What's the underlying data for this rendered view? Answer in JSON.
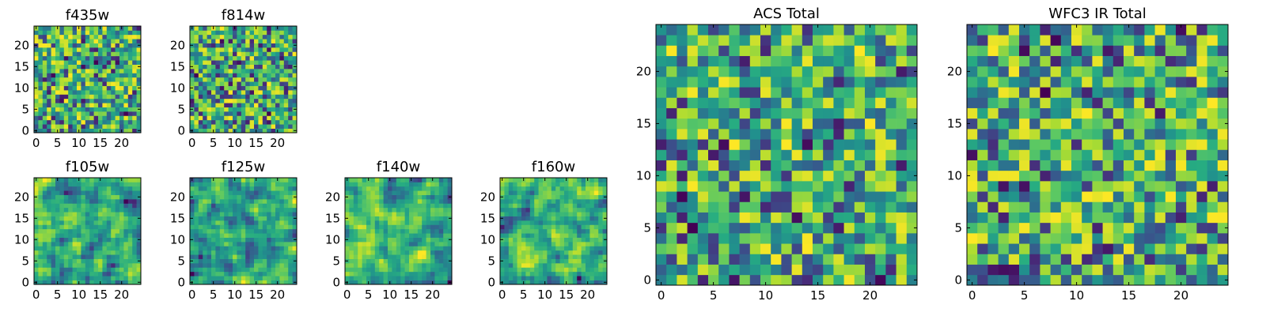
{
  "figure": {
    "colormap": "viridis"
  },
  "chart_data": [
    {
      "type": "heatmap",
      "title": "f435w",
      "xlim": [
        -0.5,
        24.5
      ],
      "ylim": [
        -0.5,
        24.5
      ],
      "xticks": [
        0,
        5,
        10,
        15,
        20
      ],
      "yticks": [
        0,
        5,
        10,
        15,
        20
      ],
      "value_range": [
        0,
        1
      ],
      "seed": 11,
      "smooth": 0,
      "grid": false
    },
    {
      "type": "heatmap",
      "title": "f814w",
      "xlim": [
        -0.5,
        24.5
      ],
      "ylim": [
        -0.5,
        24.5
      ],
      "xticks": [
        0,
        5,
        10,
        15,
        20
      ],
      "yticks": [
        0,
        5,
        10,
        15,
        20
      ],
      "value_range": [
        0,
        1
      ],
      "seed": 23,
      "smooth": 0,
      "grid": false
    },
    {
      "type": "heatmap",
      "title": "f105w",
      "xlim": [
        -0.5,
        24.5
      ],
      "ylim": [
        -0.5,
        24.5
      ],
      "xticks": [
        0,
        5,
        10,
        15,
        20
      ],
      "yticks": [
        0,
        5,
        10,
        15,
        20
      ],
      "value_range": [
        0,
        1
      ],
      "seed": 37,
      "smooth": 1,
      "grid": false
    },
    {
      "type": "heatmap",
      "title": "f125w",
      "xlim": [
        -0.5,
        24.5
      ],
      "ylim": [
        -0.5,
        24.5
      ],
      "xticks": [
        0,
        5,
        10,
        15,
        20
      ],
      "yticks": [
        0,
        5,
        10,
        15,
        20
      ],
      "value_range": [
        0,
        1
      ],
      "seed": 41,
      "smooth": 1,
      "grid": false
    },
    {
      "type": "heatmap",
      "title": "f140w",
      "xlim": [
        -0.5,
        24.5
      ],
      "ylim": [
        -0.5,
        24.5
      ],
      "xticks": [
        0,
        5,
        10,
        15,
        20
      ],
      "yticks": [
        0,
        5,
        10,
        15,
        20
      ],
      "value_range": [
        0,
        1
      ],
      "seed": 53,
      "smooth": 1,
      "grid": false
    },
    {
      "type": "heatmap",
      "title": "f160w",
      "xlim": [
        -0.5,
        24.5
      ],
      "ylim": [
        -0.5,
        24.5
      ],
      "xticks": [
        0,
        5,
        10,
        15,
        20
      ],
      "yticks": [
        0,
        5,
        10,
        15,
        20
      ],
      "value_range": [
        0,
        1
      ],
      "seed": 67,
      "smooth": 1,
      "grid": false
    },
    {
      "type": "heatmap",
      "title": "ACS Total",
      "xlim": [
        -0.5,
        24.5
      ],
      "ylim": [
        -0.5,
        24.5
      ],
      "xticks": [
        0,
        5,
        10,
        15,
        20
      ],
      "yticks": [
        0,
        5,
        10,
        15,
        20
      ],
      "value_range": [
        0,
        1
      ],
      "seed": 79,
      "smooth": 0,
      "grid": false
    },
    {
      "type": "heatmap",
      "title": "WFC3 IR Total",
      "xlim": [
        -0.5,
        24.5
      ],
      "ylim": [
        -0.5,
        24.5
      ],
      "xticks": [
        0,
        5,
        10,
        15,
        20
      ],
      "yticks": [
        0,
        5,
        10,
        15,
        20
      ],
      "value_range": [
        0,
        1
      ],
      "seed": 97,
      "smooth": 0,
      "grid": false
    }
  ]
}
